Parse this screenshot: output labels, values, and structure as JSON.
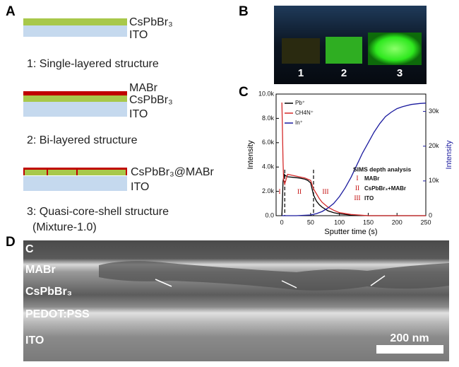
{
  "panel_labels": [
    "A",
    "B",
    "C",
    "D"
  ],
  "structures": [
    {
      "layers": [
        "CsPbBr₃",
        "ITO"
      ],
      "caption": "1: Single-layered structure"
    },
    {
      "layers": [
        "MABr",
        "CsPbBr₃",
        "ITO"
      ],
      "caption": "2: Bi-layered structure"
    },
    {
      "layers": [
        "CsPbBr₃@MABr",
        "ITO"
      ],
      "caption": "3: Quasi-core-shell structure",
      "caption_note": "(Mixture-1.0)"
    }
  ],
  "photo": {
    "labels": [
      "1",
      "2",
      "3"
    ]
  },
  "chart_data": {
    "type": "line",
    "xlabel": "Sputter time (s)",
    "ylabel": "Intensity",
    "y2label": "Intensity",
    "xlim": [
      -10,
      250
    ],
    "xticks": [
      0,
      50,
      100,
      150,
      200,
      250
    ],
    "ylim": [
      0,
      10000
    ],
    "yticks": [
      {
        "value": 0,
        "label": "0.0"
      },
      {
        "value": 2000,
        "label": "2.0k"
      },
      {
        "value": 4000,
        "label": "4.0k"
      },
      {
        "value": 6000,
        "label": "6.0k"
      },
      {
        "value": 8000,
        "label": "8.0k"
      },
      {
        "value": 10000,
        "label": "10.0k"
      }
    ],
    "y2lim": [
      0,
      35000
    ],
    "y2ticks": [
      0,
      {
        "value": 10000,
        "label": "10k"
      },
      {
        "value": 20000,
        "label": "20k"
      },
      {
        "value": 30000,
        "label": "30k"
      }
    ],
    "y2color": "#1a1a9e",
    "legend": "upper left",
    "series": [
      {
        "name": "Pb⁺",
        "color": "#000000",
        "x": [
          0,
          2,
          4,
          6,
          10,
          20,
          30,
          40,
          45,
          50,
          55,
          60,
          65,
          70,
          80,
          90,
          100,
          120,
          150,
          200,
          250
        ],
        "values": [
          0,
          2800,
          3400,
          3300,
          3200,
          3150,
          3100,
          3000,
          2900,
          2700,
          1700,
          1200,
          900,
          700,
          400,
          250,
          150,
          50,
          0,
          0,
          0
        ]
      },
      {
        "name": "CH4N⁺",
        "color": "#d42a2a",
        "x": [
          0,
          1,
          2,
          3,
          5,
          8,
          10,
          20,
          30,
          40,
          50,
          55,
          60,
          65,
          70,
          80,
          90,
          100,
          120,
          150,
          200,
          250
        ],
        "values": [
          9300,
          7000,
          4500,
          3000,
          2600,
          3100,
          3400,
          3300,
          3200,
          3100,
          2900,
          2200,
          1800,
          1400,
          1100,
          700,
          450,
          250,
          100,
          0,
          0,
          0
        ]
      },
      {
        "name": "In⁺",
        "color": "#1a1a9e",
        "axis": "y2",
        "x": [
          0,
          25,
          50,
          60,
          70,
          80,
          90,
          100,
          110,
          120,
          130,
          140,
          150,
          160,
          170,
          180,
          190,
          200,
          210,
          225,
          240,
          250
        ],
        "values": [
          0,
          0,
          200,
          600,
          1200,
          2200,
          3500,
          5500,
          8000,
          11000,
          14500,
          18000,
          21000,
          24000,
          26500,
          28500,
          29800,
          30800,
          31400,
          32000,
          32300,
          32400
        ]
      }
    ],
    "vlines": [
      5,
      55
    ],
    "annotations": {
      "title": "SIMS depth analysis",
      "regions": [
        {
          "numeral": "I",
          "label": "MABr"
        },
        {
          "numeral": "II",
          "label": "CsPbBr₃+MABr"
        },
        {
          "numeral": "III",
          "label": "ITO"
        }
      ]
    }
  },
  "micrograph": {
    "layers": [
      "C",
      "MABr",
      "CsPbBr₃",
      "PEDOT:PSS",
      "ITO"
    ],
    "scale_bar": "200 nm"
  }
}
